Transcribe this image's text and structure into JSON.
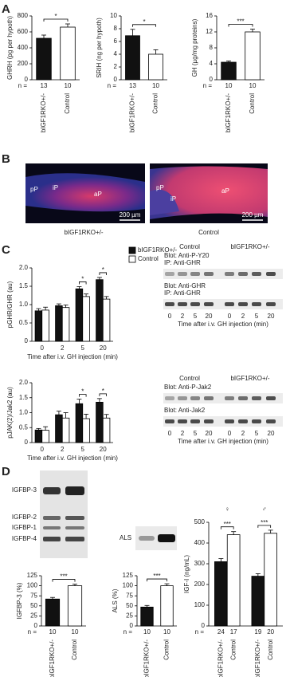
{
  "panel_labels": [
    "A",
    "B",
    "C",
    "D"
  ],
  "chart_data": [
    {
      "type": "bar",
      "ylabel": "GHRH (pg per hypoth)",
      "categories": [
        "bIGF1RKO+/-",
        "Control"
      ],
      "values": [
        520,
        660
      ],
      "errors": [
        40,
        40
      ],
      "colors": [
        "#111111",
        "#ffffff"
      ],
      "ylim": [
        0,
        800
      ],
      "yticks": [
        0,
        200,
        400,
        600,
        800
      ],
      "n_label": "n =",
      "n": [
        13,
        10
      ],
      "significance": "*"
    },
    {
      "type": "bar",
      "ylabel": "SRIH (ng per hypoth)",
      "categories": [
        "bIGF1RKO+/-",
        "Control"
      ],
      "values": [
        6.9,
        4.0
      ],
      "errors": [
        1.0,
        0.7
      ],
      "colors": [
        "#111111",
        "#ffffff"
      ],
      "ylim": [
        0,
        10
      ],
      "yticks": [
        0,
        2,
        4,
        6,
        8,
        10
      ],
      "n_label": "n =",
      "n": [
        13,
        10
      ],
      "significance": "*"
    },
    {
      "type": "bar",
      "ylabel": "GH (µg/mg proteins)",
      "categories": [
        "bIGF1RKO+/-",
        "Control"
      ],
      "values": [
        4.4,
        12.0
      ],
      "errors": [
        0.3,
        0.7
      ],
      "colors": [
        "#111111",
        "#ffffff"
      ],
      "ylim": [
        0,
        16
      ],
      "yticks": [
        0,
        4,
        8,
        12,
        16
      ],
      "n_label": "n =",
      "n": [
        10,
        10
      ],
      "significance": "***"
    },
    {
      "type": "bar",
      "ylabel": "pGHR/GHR (au)",
      "xlabel": "Time after i.v. GH injection (min)",
      "categories": [
        "0",
        "2",
        "5",
        "20"
      ],
      "series": [
        {
          "name": "bIGF1RKO+/-",
          "color": "#111111",
          "values": [
            0.83,
            0.97,
            1.43,
            1.68
          ],
          "errors": [
            0.06,
            0.05,
            0.06,
            0.06
          ]
        },
        {
          "name": "Control",
          "color": "#ffffff",
          "values": [
            0.85,
            0.92,
            1.22,
            1.15
          ],
          "errors": [
            0.08,
            0.07,
            0.07,
            0.07
          ]
        }
      ],
      "ylim": [
        0,
        2
      ],
      "yticks": [
        0,
        0.5,
        {
          "value": 1,
          "label": "1.0"
        },
        1.5,
        {
          "value": 2,
          "label": "2.0"
        }
      ],
      "significance": [
        null,
        null,
        "*",
        "*"
      ],
      "legend": "top-right"
    },
    {
      "type": "bar",
      "ylabel": "pJAK(2)/Jak2 (au)",
      "xlabel": "Time after i.v. GH injection (min)",
      "categories": [
        "0",
        "2",
        "5",
        "20"
      ],
      "series": [
        {
          "color": "#111111",
          "values": [
            0.42,
            0.93,
            1.3,
            1.35
          ],
          "errors": [
            0.05,
            0.12,
            0.15,
            0.12
          ]
        },
        {
          "color": "#ffffff",
          "values": [
            0.41,
            0.82,
            0.8,
            0.82
          ],
          "errors": [
            0.12,
            0.18,
            0.15,
            0.12
          ]
        }
      ],
      "ylim": [
        0,
        2
      ],
      "yticks": [
        0,
        0.5,
        {
          "value": 1,
          "label": "1.0"
        },
        1.5,
        {
          "value": 2,
          "label": "2.0"
        }
      ],
      "significance": [
        null,
        null,
        "*",
        "*"
      ]
    },
    {
      "type": "bar",
      "ylabel": "IGFBP-3 (%)",
      "categories": [
        "bIGF1RKO+/-",
        "Control"
      ],
      "values": [
        67,
        100
      ],
      "errors": [
        4,
        4
      ],
      "colors": [
        "#111111",
        "#ffffff"
      ],
      "ylim": [
        0,
        125
      ],
      "yticks": [
        0,
        25,
        50,
        75,
        100,
        125
      ],
      "n_label": "n =",
      "n": [
        10,
        10
      ],
      "significance": "***"
    },
    {
      "type": "bar",
      "ylabel": "ALS (%)",
      "categories": [
        "bIGF1RKO+/-",
        "Control"
      ],
      "values": [
        47,
        100
      ],
      "errors": [
        4,
        5
      ],
      "colors": [
        "#111111",
        "#ffffff"
      ],
      "ylim": [
        0,
        125
      ],
      "yticks": [
        0,
        25,
        50,
        75,
        100,
        125
      ],
      "n_label": "n =",
      "n": [
        10,
        10
      ],
      "significance": "***"
    },
    {
      "type": "bar",
      "ylabel": "IGF-I (ng/mL)",
      "categories": [
        "♀",
        "♂"
      ],
      "series": [
        {
          "name": "bIGF1RKO+/-",
          "color": "#111111",
          "values": [
            310,
            240
          ],
          "errors": [
            15,
            12
          ],
          "n": [
            24,
            19
          ]
        },
        {
          "name": "Control",
          "color": "#ffffff",
          "values": [
            440,
            447
          ],
          "errors": [
            15,
            15
          ],
          "n": [
            17,
            20
          ]
        }
      ],
      "ylim": [
        0,
        500
      ],
      "yticks": [
        0,
        100,
        200,
        300,
        400,
        500
      ],
      "n_label": "n =",
      "significance": [
        "***",
        "***"
      ]
    }
  ],
  "micrographs": [
    {
      "caption": "bIGF1RKO+/-",
      "regions": [
        "pP",
        "iP",
        "aP"
      ],
      "scale_bar": "200 µm"
    },
    {
      "caption": "Control",
      "regions": [
        "pP",
        "iP",
        "aP"
      ],
      "scale_bar": "200 µm"
    }
  ],
  "blots": [
    {
      "groups": [
        "Control",
        "bIGF1RKO+/-"
      ],
      "rows": [
        [
          "Blot: Anti-P-Y20",
          "IP: Anti-GHR"
        ],
        [
          "Blot: Anti-GHR",
          "IP: Anti-GHR"
        ]
      ],
      "lanes": [
        "0",
        "2",
        "5",
        "20",
        "0",
        "2",
        "5",
        "20"
      ],
      "xlabel": "Time after i.v. GH injection (min)"
    },
    {
      "groups": [
        "Control",
        "bIGF1RKO+/-"
      ],
      "rows": [
        [
          "Blot: Anti-P-Jak2"
        ],
        [
          "Blot: Anti-Jak2"
        ]
      ],
      "lanes": [
        "0",
        "2",
        "5",
        "20",
        "0",
        "2",
        "5",
        "20"
      ],
      "xlabel": "Time after i.v. GH injection (min)"
    }
  ],
  "serum_blot": {
    "bands": [
      "IGFBP-3",
      "IGFBP-2",
      "IGFBP-1",
      "IGFBP-4"
    ],
    "als": "ALS"
  }
}
